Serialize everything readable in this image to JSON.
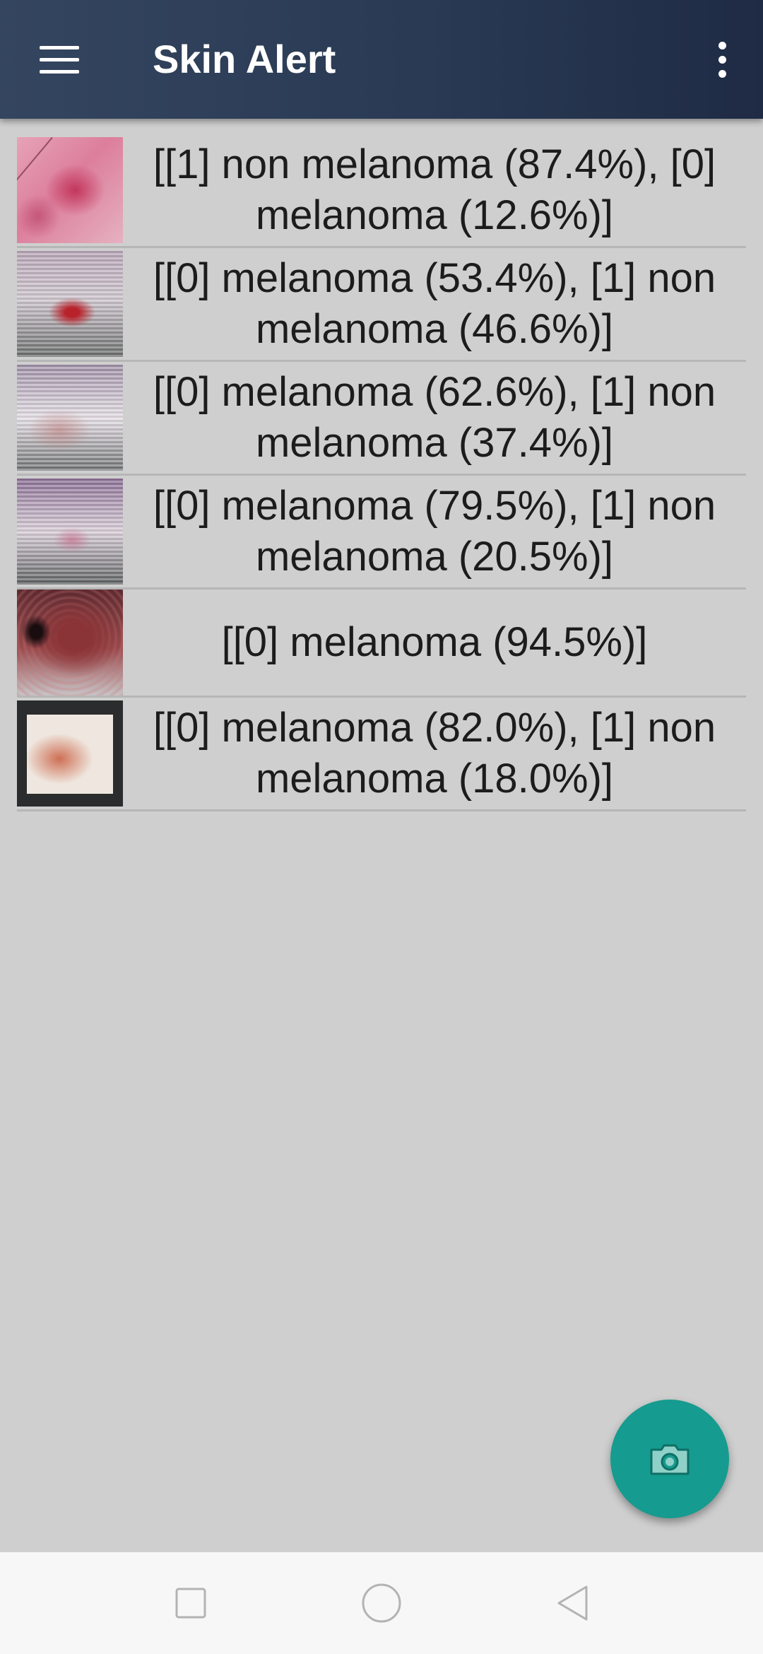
{
  "app": {
    "title": "Skin Alert",
    "menu_icon": "hamburger-menu-icon",
    "overflow_icon": "more-vert-icon"
  },
  "results": [
    {
      "label": "[[1] non melanoma (87.4%), [0] melanoma (12.6%)]"
    },
    {
      "label": "[[0] melanoma (53.4%), [1] non melanoma (46.6%)]"
    },
    {
      "label": "[[0] melanoma (62.6%), [1] non melanoma (37.4%)]"
    },
    {
      "label": "[[0] melanoma (79.5%), [1] non melanoma (20.5%)]"
    },
    {
      "label": "[[0] melanoma (94.5%)]"
    },
    {
      "label": "[[0] melanoma (82.0%), [1] non melanoma (18.0%)]"
    }
  ],
  "fab": {
    "icon": "camera-icon",
    "color": "#159b8f"
  },
  "colors": {
    "appbar": "#2c3c56",
    "background": "#cfcfcf"
  },
  "navbar": {
    "icons": [
      "recents-square-icon",
      "home-circle-icon",
      "back-triangle-icon"
    ]
  }
}
